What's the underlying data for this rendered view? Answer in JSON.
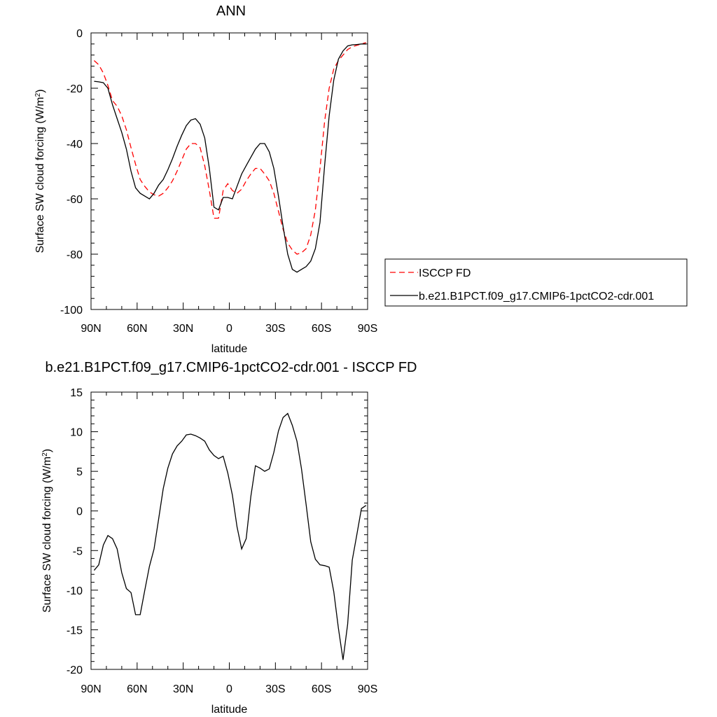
{
  "chart_data": [
    {
      "type": "line",
      "title": "ANN",
      "xlabel": "latitude",
      "ylabel_main": "Surface SW cloud forcing (W/m",
      "ylabel_sup": "2",
      "ylabel_end": ")",
      "xlim": [
        -90,
        90
      ],
      "ylim": [
        -100,
        0
      ],
      "xticks": [
        {
          "value": -90,
          "label": "90N"
        },
        {
          "value": -60,
          "label": "60N"
        },
        {
          "value": -30,
          "label": "30N"
        },
        {
          "value": 0,
          "label": "0"
        },
        {
          "value": 30,
          "label": "30S"
        },
        {
          "value": 60,
          "label": "60S"
        },
        {
          "value": 90,
          "label": "90S"
        }
      ],
      "yticks": [
        0,
        -20,
        -40,
        -60,
        -80,
        -100
      ],
      "legend_position": "right",
      "series": [
        {
          "name": "ISCCP FD",
          "color": "#ff0000",
          "dash": true,
          "x": [
            -88,
            -85,
            -82,
            -79,
            -76,
            -73,
            -70,
            -67,
            -64,
            -61,
            -58,
            -55,
            -52,
            -49,
            -46,
            -43,
            -40,
            -37,
            -34,
            -31,
            -28,
            -25,
            -22,
            -19,
            -16,
            -13,
            -10,
            -7,
            -4,
            -1,
            2,
            5,
            8,
            11,
            14,
            17,
            20,
            23,
            26,
            29,
            32,
            35,
            38,
            41,
            44,
            47,
            50,
            53,
            56,
            59,
            62,
            65,
            68,
            71,
            74,
            77,
            80,
            83,
            86,
            89
          ],
          "y": [
            -10,
            -11.5,
            -14.5,
            -19,
            -24.5,
            -26.5,
            -30,
            -35,
            -41.5,
            -47.5,
            -53,
            -55.5,
            -57.5,
            -58.5,
            -59,
            -58,
            -56,
            -53.5,
            -50,
            -46,
            -42,
            -40,
            -40,
            -41.5,
            -48,
            -57,
            -67,
            -67,
            -57,
            -54.5,
            -57,
            -58,
            -56.5,
            -53.5,
            -51,
            -49,
            -49,
            -51,
            -53.5,
            -58,
            -64.5,
            -71,
            -76,
            -78.5,
            -80,
            -79.5,
            -78,
            -73,
            -64,
            -49,
            -32,
            -20,
            -13,
            -10,
            -8,
            -6,
            -5,
            -4.5,
            -4,
            -3.5
          ]
        },
        {
          "name": "b.e21.B1PCT.f09_g17.CMIP6-1pctCO2-cdr.001",
          "color": "#000000",
          "dash": false,
          "x": [
            -88,
            -85,
            -82,
            -79,
            -76,
            -73,
            -70,
            -67,
            -64,
            -61,
            -58,
            -55,
            -52,
            -49,
            -46,
            -43,
            -40,
            -37,
            -34,
            -31,
            -28,
            -25,
            -22,
            -19,
            -16,
            -13,
            -10,
            -7,
            -4,
            -1,
            2,
            5,
            8,
            11,
            14,
            17,
            20,
            23,
            26,
            29,
            32,
            35,
            38,
            41,
            44,
            47,
            50,
            53,
            56,
            59,
            62,
            65,
            68,
            71,
            74,
            77,
            80,
            83,
            86,
            89
          ],
          "y": [
            -17.5,
            -17.7,
            -18,
            -20,
            -26,
            -31,
            -36,
            -42,
            -50,
            -56,
            -58,
            -59,
            -60,
            -58,
            -55,
            -53,
            -49.5,
            -45.5,
            -41,
            -37,
            -33.5,
            -31.5,
            -31,
            -33,
            -38,
            -49,
            -63,
            -64,
            -59.5,
            -59.5,
            -60,
            -55.5,
            -51,
            -48,
            -45,
            -42,
            -40,
            -40,
            -43,
            -49,
            -59,
            -70,
            -80,
            -85.5,
            -86.5,
            -85.5,
            -84.5,
            -82.5,
            -78,
            -68.5,
            -48,
            -30,
            -17,
            -9.5,
            -6.5,
            -4.7,
            -4.3,
            -4.2,
            -4,
            -4
          ]
        }
      ]
    },
    {
      "type": "line",
      "title": "b.e21.B1PCT.f09_g17.CMIP6-1pctCO2-cdr.001 - ISCCP FD",
      "xlabel": "latitude",
      "ylabel_main": "Surface SW cloud forcing (W/m",
      "ylabel_sup": "2",
      "ylabel_end": ")",
      "xlim": [
        -90,
        90
      ],
      "ylim": [
        -20,
        15
      ],
      "xticks": [
        {
          "value": -90,
          "label": "90N"
        },
        {
          "value": -60,
          "label": "60N"
        },
        {
          "value": -30,
          "label": "30N"
        },
        {
          "value": 0,
          "label": "0"
        },
        {
          "value": 30,
          "label": "30S"
        },
        {
          "value": 60,
          "label": "60S"
        },
        {
          "value": 90,
          "label": "90S"
        }
      ],
      "yticks": [
        15,
        10,
        5,
        0,
        -5,
        -10,
        -15,
        -20
      ],
      "series": [
        {
          "color": "#000000",
          "dash": false,
          "x": [
            -88,
            -85,
            -82,
            -79,
            -76,
            -73,
            -70,
            -67,
            -64,
            -61,
            -58,
            -55,
            -52,
            -49,
            -46,
            -43,
            -40,
            -37,
            -34,
            -31,
            -28,
            -25,
            -22,
            -19,
            -16,
            -13,
            -10,
            -7,
            -4,
            -1,
            2,
            5,
            8,
            11,
            14,
            17,
            20,
            23,
            26,
            29,
            32,
            35,
            38,
            41,
            44,
            47,
            50,
            53,
            56,
            59,
            62,
            65,
            68,
            71,
            74,
            77,
            80,
            83,
            86,
            89
          ],
          "y": [
            -7.5,
            -6.8,
            -4.3,
            -3.1,
            -3.5,
            -4.8,
            -7.8,
            -9.8,
            -10.3,
            -13.1,
            -13.1,
            -10.0,
            -7.0,
            -4.8,
            -1.0,
            2.8,
            5.4,
            7.2,
            8.2,
            8.8,
            9.6,
            9.7,
            9.5,
            9.2,
            8.8,
            7.7,
            7.0,
            6.6,
            6.9,
            4.8,
            2.0,
            -2.0,
            -4.8,
            -3.5,
            1.8,
            5.7,
            5.4,
            5.0,
            5.3,
            7.4,
            10.1,
            11.8,
            12.3,
            10.8,
            8.8,
            5.3,
            0.8,
            -3.9,
            -6.1,
            -6.8,
            -6.9,
            -7.1,
            -10.2,
            -14.8,
            -18.8,
            -14.3,
            -6.2,
            -3.0,
            0.3,
            0.7
          ]
        }
      ]
    }
  ]
}
